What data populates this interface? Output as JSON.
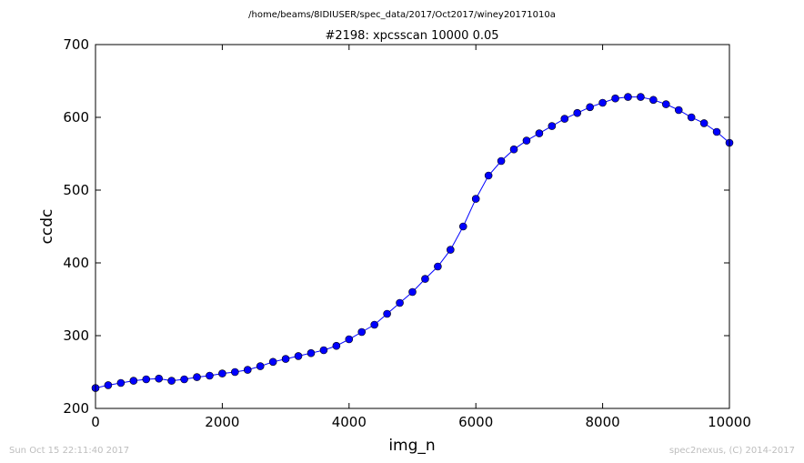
{
  "header": {
    "suptitle": "/home/beams/8IDIUSER/spec_data/2017/Oct2017/winey20171010a",
    "title": "#2198: xpcsscan 10000 0.05"
  },
  "footer": {
    "timestamp": "Sun Oct 15 22:11:40 2017",
    "credit": "spec2nexus, (C) 2014-2017"
  },
  "chart_data": {
    "type": "line",
    "xlabel": "img_n",
    "ylabel": "ccdc",
    "xlim": [
      0,
      10000
    ],
    "ylim": [
      200,
      700
    ],
    "xticks": [
      "0",
      "2000",
      "4000",
      "6000",
      "8000",
      "10000"
    ],
    "yticks": [
      "200",
      "300",
      "400",
      "500",
      "600",
      "700"
    ],
    "marker": "circle",
    "line_color": "#0000ff",
    "marker_color": "#0000ff",
    "series": [
      {
        "x": [
          0,
          200,
          400,
          600,
          800,
          1000,
          1200,
          1400,
          1600,
          1800,
          2000,
          2200,
          2400,
          2600,
          2800,
          3000,
          3200,
          3400,
          3600,
          3800,
          4000,
          4200,
          4400,
          4600,
          4800,
          5000,
          5200,
          5400,
          5600,
          5800,
          6000,
          6200,
          6400,
          6600,
          6800,
          7000,
          7200,
          7400,
          7600,
          7800,
          8000,
          8200,
          8400,
          8600,
          8800,
          9000,
          9200,
          9400,
          9600,
          9800,
          10000
        ],
        "y": [
          228,
          232,
          235,
          238,
          240,
          241,
          238,
          240,
          243,
          245,
          248,
          250,
          253,
          258,
          264,
          268,
          272,
          276,
          280,
          286,
          295,
          305,
          315,
          330,
          345,
          360,
          378,
          395,
          418,
          450,
          488,
          520,
          540,
          556,
          568,
          578,
          588,
          598,
          606,
          614,
          620,
          626,
          628,
          628,
          624,
          618,
          610,
          600,
          592,
          580,
          565
        ]
      }
    ]
  }
}
